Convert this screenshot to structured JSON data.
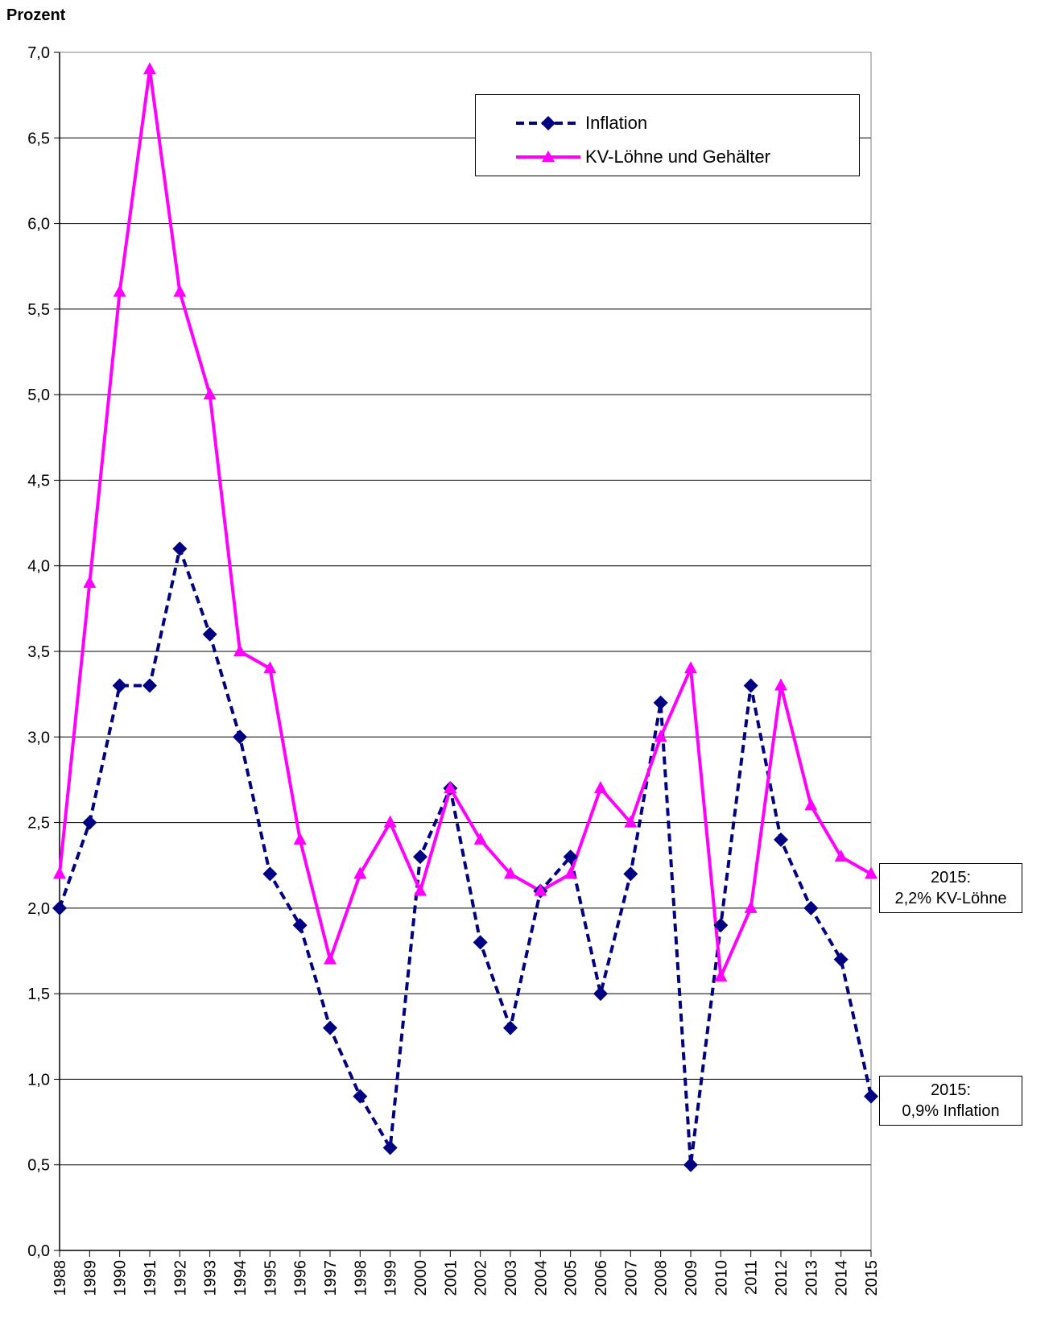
{
  "chart_data": {
    "type": "line",
    "ylabel": "Prozent",
    "xlabel": "",
    "ylim": [
      0,
      7
    ],
    "ytick_step": 0.5,
    "grid": true,
    "legend_position": "top-right",
    "categories": [
      "1988",
      "1989",
      "1990",
      "1991",
      "1992",
      "1993",
      "1994",
      "1995",
      "1996",
      "1997",
      "1998",
      "1999",
      "2000",
      "2001",
      "2002",
      "2003",
      "2004",
      "2005",
      "2006",
      "2007",
      "2008",
      "2009",
      "2010",
      "2011",
      "2012",
      "2013",
      "2014",
      "2015"
    ],
    "series": [
      {
        "name": "Inflation",
        "color": "#000080",
        "style": "dashed",
        "marker": "diamond",
        "values": [
          2.0,
          2.5,
          3.3,
          3.3,
          4.1,
          3.6,
          3.0,
          2.2,
          1.9,
          1.3,
          0.9,
          0.6,
          2.3,
          2.7,
          1.8,
          1.3,
          2.1,
          2.3,
          1.5,
          2.2,
          3.2,
          0.5,
          1.9,
          3.3,
          2.4,
          2.0,
          1.7,
          0.9
        ]
      },
      {
        "name": "KV-Löhne und Gehälter",
        "color": "#FF00FF",
        "style": "solid",
        "marker": "triangle",
        "values": [
          2.2,
          3.9,
          5.6,
          6.9,
          5.6,
          5.0,
          3.5,
          3.4,
          2.4,
          1.7,
          2.2,
          2.5,
          2.1,
          2.7,
          2.4,
          2.2,
          2.1,
          2.2,
          2.7,
          2.5,
          3.0,
          3.4,
          1.6,
          2.0,
          3.3,
          2.6,
          2.3,
          2.2
        ]
      }
    ],
    "annotations": [
      {
        "line1": "2015:",
        "line2": "2,2% KV-Löhne"
      },
      {
        "line1": "2015:",
        "line2": "0,9% Inflation"
      }
    ]
  }
}
